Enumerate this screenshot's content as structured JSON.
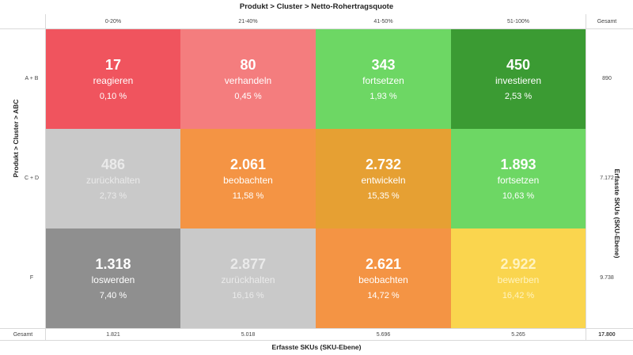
{
  "chart_data": {
    "type": "heatmap",
    "x_title": "Produkt > Cluster > Netto-Rohertragsquote",
    "y_title": "Produkt > Cluster > ABC",
    "right_title": "Erfasste SKUs (SKU-Ebene)",
    "bottom_title": "Erfasste SKUs (SKU-Ebene)",
    "columns": [
      "0-20%",
      "21-40%",
      "41-50%",
      "51-100%"
    ],
    "rows": [
      "A + B",
      "C + D",
      "F"
    ],
    "total_label": "Gesamt",
    "cells": [
      [
        {
          "count": "17",
          "action": "reagieren",
          "share": "0,10 %",
          "color": "#f0545e"
        },
        {
          "count": "80",
          "action": "verhandeln",
          "share": "0,45 %",
          "color": "#f47d7e"
        },
        {
          "count": "343",
          "action": "fortsetzen",
          "share": "1,93 %",
          "color": "#6dd764"
        },
        {
          "count": "450",
          "action": "investieren",
          "share": "2,53 %",
          "color": "#3b9b33"
        }
      ],
      [
        {
          "count": "486",
          "action": "zurückhalten",
          "share": "2,73 %",
          "color": "#c9c9c9"
        },
        {
          "count": "2.061",
          "action": "beobachten",
          "share": "11,58 %",
          "color": "#f49444"
        },
        {
          "count": "2.732",
          "action": "entwickeln",
          "share": "15,35 %",
          "color": "#e6a033"
        },
        {
          "count": "1.893",
          "action": "fortsetzen",
          "share": "10,63 %",
          "color": "#6dd764"
        }
      ],
      [
        {
          "count": "1.318",
          "action": "loswerden",
          "share": "7,40 %",
          "color": "#8f8f8f"
        },
        {
          "count": "2.877",
          "action": "zurückhalten",
          "share": "16,16 %",
          "color": "#c9c9c9"
        },
        {
          "count": "2.621",
          "action": "beobachten",
          "share": "14,72 %",
          "color": "#f49444"
        },
        {
          "count": "2.922",
          "action": "bewerben",
          "share": "16,42 %",
          "color": "#fad54e"
        }
      ]
    ],
    "row_totals": [
      "890",
      "7.172",
      "9.738"
    ],
    "column_totals": [
      "1.821",
      "5.018",
      "5.696",
      "5.265"
    ],
    "grand_total": "17.800"
  }
}
